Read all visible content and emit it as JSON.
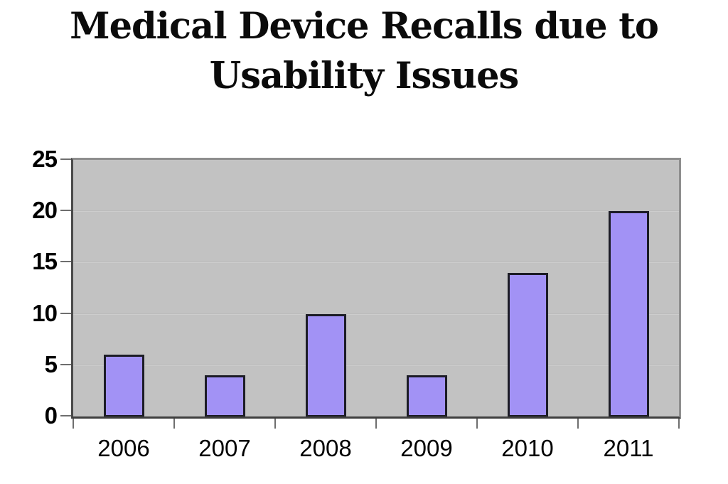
{
  "title": {
    "line1": "Medical Device Recalls due to",
    "line2": "Usability Issues"
  },
  "chart_data": {
    "type": "bar",
    "title": "Medical Device Recalls due to Usability Issues",
    "categories": [
      "2006",
      "2007",
      "2008",
      "2009",
      "2010",
      "2011"
    ],
    "values": [
      6,
      4,
      10,
      4,
      14,
      20
    ],
    "xlabel": "",
    "ylabel": "",
    "ylim": [
      0,
      25
    ],
    "yticks": [
      0,
      5,
      10,
      15,
      20,
      25
    ],
    "grid": true,
    "legend": false,
    "colors": {
      "bar_fill": "#a292f5",
      "bar_border": "#1c1c26",
      "plot_bg": "#c2c2c2",
      "gridline": "#b2b2b2",
      "gridline_light": "#d6d6d6",
      "tick": "#6e6e6e",
      "text": "#000000",
      "page_bg": "#ffffff"
    }
  }
}
